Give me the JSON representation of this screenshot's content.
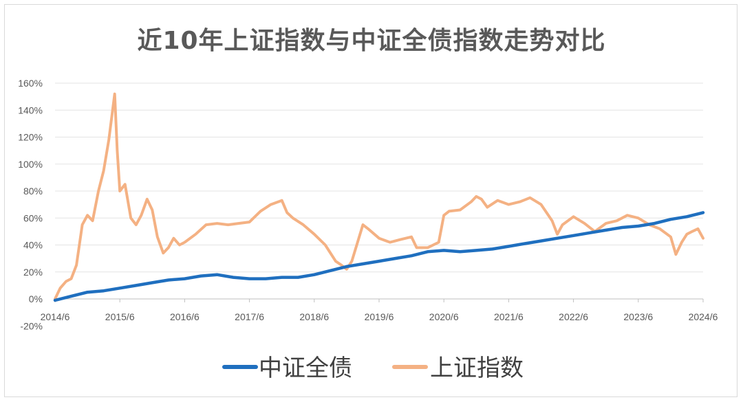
{
  "chart_data": {
    "type": "line",
    "title": "近10年上证指数与中证全债指数走势对比",
    "xlabel": "",
    "ylabel": "",
    "x_ticks": [
      "2014/6",
      "2015/6",
      "2016/6",
      "2017/6",
      "2018/6",
      "2019/6",
      "2020/6",
      "2021/6",
      "2022/6",
      "2023/6",
      "2024/6"
    ],
    "y_ticks": [
      "160%",
      "140%",
      "120%",
      "100%",
      "80%",
      "60%",
      "40%",
      "20%",
      "0%",
      "-20%"
    ],
    "ylim": [
      -20,
      160
    ],
    "grid": "horizontal",
    "legend_position": "bottom",
    "series": [
      {
        "name": "中证全债",
        "color": "#1f6fbf",
        "points": [
          [
            2014.5,
            -1
          ],
          [
            2014.75,
            2
          ],
          [
            2015.0,
            5
          ],
          [
            2015.25,
            6
          ],
          [
            2015.5,
            8
          ],
          [
            2015.75,
            10
          ],
          [
            2016.0,
            12
          ],
          [
            2016.25,
            14
          ],
          [
            2016.5,
            15
          ],
          [
            2016.75,
            17
          ],
          [
            2017.0,
            18
          ],
          [
            2017.25,
            16
          ],
          [
            2017.5,
            15
          ],
          [
            2017.75,
            15
          ],
          [
            2018.0,
            16
          ],
          [
            2018.25,
            16
          ],
          [
            2018.5,
            18
          ],
          [
            2018.75,
            21
          ],
          [
            2019.0,
            24
          ],
          [
            2019.25,
            26
          ],
          [
            2019.5,
            28
          ],
          [
            2019.75,
            30
          ],
          [
            2020.0,
            32
          ],
          [
            2020.25,
            35
          ],
          [
            2020.5,
            36
          ],
          [
            2020.75,
            35
          ],
          [
            2021.0,
            36
          ],
          [
            2021.25,
            37
          ],
          [
            2021.5,
            39
          ],
          [
            2021.75,
            41
          ],
          [
            2022.0,
            43
          ],
          [
            2022.25,
            45
          ],
          [
            2022.5,
            47
          ],
          [
            2022.75,
            49
          ],
          [
            2023.0,
            51
          ],
          [
            2023.25,
            53
          ],
          [
            2023.5,
            54
          ],
          [
            2023.75,
            56
          ],
          [
            2024.0,
            59
          ],
          [
            2024.25,
            61
          ],
          [
            2024.5,
            64
          ]
        ]
      },
      {
        "name": "上证指数",
        "color": "#f4b183",
        "points": [
          [
            2014.5,
            0
          ],
          [
            2014.58,
            8
          ],
          [
            2014.67,
            13
          ],
          [
            2014.75,
            15
          ],
          [
            2014.83,
            25
          ],
          [
            2014.92,
            55
          ],
          [
            2015.0,
            62
          ],
          [
            2015.08,
            58
          ],
          [
            2015.17,
            80
          ],
          [
            2015.25,
            95
          ],
          [
            2015.33,
            118
          ],
          [
            2015.42,
            152
          ],
          [
            2015.46,
            110
          ],
          [
            2015.5,
            80
          ],
          [
            2015.58,
            85
          ],
          [
            2015.67,
            60
          ],
          [
            2015.75,
            55
          ],
          [
            2015.83,
            62
          ],
          [
            2015.92,
            74
          ],
          [
            2016.0,
            66
          ],
          [
            2016.08,
            46
          ],
          [
            2016.17,
            34
          ],
          [
            2016.25,
            38
          ],
          [
            2016.33,
            45
          ],
          [
            2016.42,
            40
          ],
          [
            2016.5,
            42
          ],
          [
            2016.67,
            48
          ],
          [
            2016.83,
            55
          ],
          [
            2017.0,
            56
          ],
          [
            2017.17,
            55
          ],
          [
            2017.33,
            56
          ],
          [
            2017.5,
            57
          ],
          [
            2017.67,
            65
          ],
          [
            2017.83,
            70
          ],
          [
            2018.0,
            73
          ],
          [
            2018.08,
            64
          ],
          [
            2018.17,
            60
          ],
          [
            2018.33,
            55
          ],
          [
            2018.5,
            48
          ],
          [
            2018.67,
            40
          ],
          [
            2018.83,
            28
          ],
          [
            2018.92,
            25
          ],
          [
            2019.0,
            22
          ],
          [
            2019.08,
            28
          ],
          [
            2019.25,
            55
          ],
          [
            2019.33,
            52
          ],
          [
            2019.5,
            45
          ],
          [
            2019.67,
            42
          ],
          [
            2019.83,
            44
          ],
          [
            2020.0,
            46
          ],
          [
            2020.08,
            38
          ],
          [
            2020.25,
            38
          ],
          [
            2020.42,
            42
          ],
          [
            2020.5,
            62
          ],
          [
            2020.58,
            65
          ],
          [
            2020.75,
            66
          ],
          [
            2020.92,
            72
          ],
          [
            2021.0,
            76
          ],
          [
            2021.08,
            74
          ],
          [
            2021.17,
            68
          ],
          [
            2021.33,
            73
          ],
          [
            2021.5,
            70
          ],
          [
            2021.67,
            72
          ],
          [
            2021.83,
            75
          ],
          [
            2022.0,
            70
          ],
          [
            2022.17,
            58
          ],
          [
            2022.25,
            48
          ],
          [
            2022.33,
            55
          ],
          [
            2022.5,
            61
          ],
          [
            2022.67,
            56
          ],
          [
            2022.83,
            50
          ],
          [
            2023.0,
            56
          ],
          [
            2023.17,
            58
          ],
          [
            2023.33,
            62
          ],
          [
            2023.5,
            60
          ],
          [
            2023.67,
            55
          ],
          [
            2023.83,
            52
          ],
          [
            2024.0,
            46
          ],
          [
            2024.08,
            33
          ],
          [
            2024.17,
            42
          ],
          [
            2024.25,
            48
          ],
          [
            2024.33,
            50
          ],
          [
            2024.42,
            52
          ],
          [
            2024.5,
            45
          ]
        ]
      }
    ]
  }
}
